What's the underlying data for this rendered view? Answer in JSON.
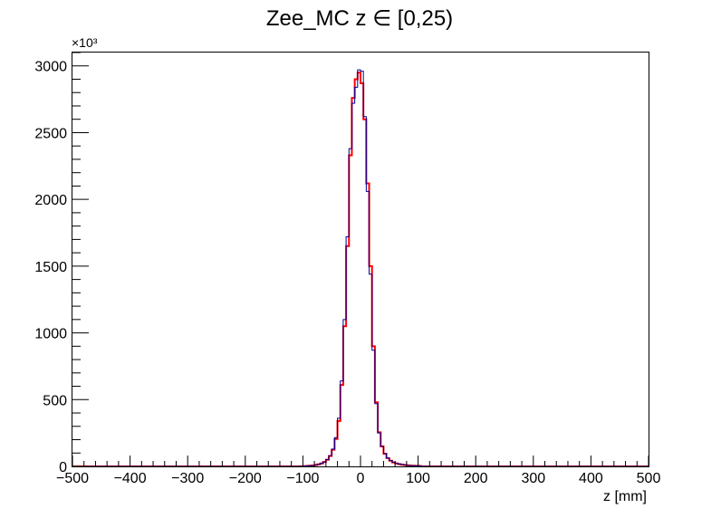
{
  "chart_data": {
    "type": "histogram",
    "title": "Zee_MC z ∈ [0,25)",
    "xlabel": "z [mm]",
    "ylabel": "",
    "y_multiplier": "×10³",
    "xlim": [
      -500,
      500
    ],
    "ylim": [
      0,
      3100
    ],
    "x_ticks": [
      -500,
      -400,
      -300,
      -200,
      -100,
      0,
      100,
      200,
      300,
      400,
      500
    ],
    "x_tick_labels": [
      "−500",
      "−400",
      "−300",
      "−200",
      "−100",
      "0",
      "100",
      "200",
      "300",
      "400",
      "500"
    ],
    "y_ticks": [
      0,
      500,
      1000,
      1500,
      2000,
      2500,
      3000
    ],
    "y_tick_labels": [
      "0",
      "500",
      "1000",
      "1500",
      "2000",
      "2500",
      "3000"
    ],
    "grid": false,
    "series": [
      {
        "color": "#ff0000",
        "bin_width": 5,
        "bin_centers": [
          -102.5,
          -97.5,
          -92.5,
          -87.5,
          -82.5,
          -77.5,
          -72.5,
          -67.5,
          -62.5,
          -57.5,
          -52.5,
          -47.5,
          -42.5,
          -37.5,
          -32.5,
          -27.5,
          -22.5,
          -17.5,
          -12.5,
          -7.5,
          -2.5,
          2.5,
          7.5,
          12.5,
          17.5,
          22.5,
          27.5,
          32.5,
          37.5,
          42.5,
          47.5,
          52.5,
          57.5,
          62.5,
          67.5,
          72.5,
          77.5,
          82.5,
          87.5,
          92.5,
          97.5,
          102.5
        ],
        "values": [
          1,
          2,
          3,
          5,
          7,
          10,
          15,
          22,
          33,
          50,
          78,
          125,
          205,
          340,
          610,
          1050,
          1650,
          2330,
          2760,
          2900,
          2950,
          2870,
          2600,
          2120,
          1500,
          900,
          480,
          255,
          150,
          95,
          62,
          42,
          30,
          22,
          17,
          13,
          10,
          8,
          6,
          5,
          4,
          3
        ]
      },
      {
        "color": "#000099",
        "bin_width": 5,
        "bin_centers": [
          -102.5,
          -97.5,
          -92.5,
          -87.5,
          -82.5,
          -77.5,
          -72.5,
          -67.5,
          -62.5,
          -57.5,
          -52.5,
          -47.5,
          -42.5,
          -37.5,
          -32.5,
          -27.5,
          -22.5,
          -17.5,
          -12.5,
          -7.5,
          -2.5,
          2.5,
          7.5,
          12.5,
          17.5,
          22.5,
          27.5,
          32.5,
          37.5,
          42.5,
          47.5,
          52.5,
          57.5,
          62.5,
          67.5,
          72.5,
          77.5,
          82.5,
          87.5,
          92.5,
          97.5,
          102.5
        ],
        "values": [
          1,
          2,
          3,
          5,
          7,
          10,
          15,
          22,
          33,
          50,
          80,
          130,
          215,
          360,
          640,
          1100,
          1720,
          2380,
          2720,
          2840,
          2970,
          2960,
          2620,
          2060,
          1440,
          870,
          470,
          250,
          150,
          96,
          63,
          43,
          31,
          23,
          18,
          14,
          11,
          8,
          6,
          5,
          4,
          3
        ]
      }
    ]
  }
}
